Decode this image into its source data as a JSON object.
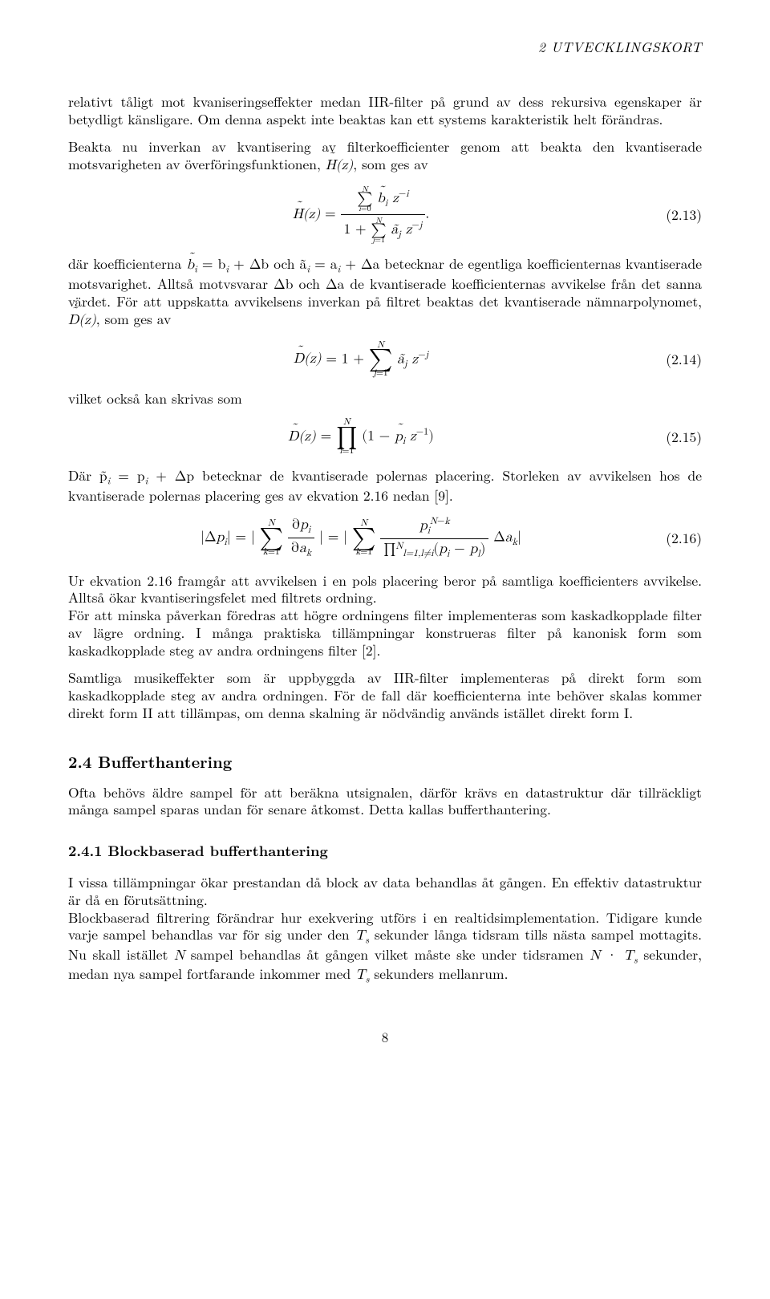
{
  "header": {
    "section": "2   UTVECKLINGSKORT"
  },
  "p1": "relativt tåligt mot kvaniseringseffekter medan IIR-filter på grund av dess rekursiva egenskaper är betydligt känsligare. Om denna aspekt inte beaktas kan ett systems karakteristik helt förändras.",
  "p2_pre": "Beakta nu inverkan av kvantisering av filterkoefficienter genom att beakta den kvantiserade motsvarigheten av överföringsfunktionen, ",
  "p2_math": "H̃(z)",
  "p2_post": ", som ges av",
  "eq213_num": "(2.13)",
  "eq214_num": "(2.14)",
  "eq215_num": "(2.15)",
  "eq216_num": "(2.16)",
  "p3_a": "där koefficienterna ",
  "p3_b": "b̃",
  "p3_c": " = b",
  "p3_d": " + Δb och ã",
  "p3_e": " = a",
  "p3_f": " + Δa betecknar de egentliga koefficienternas kvantiserade motsvarighet. Alltså motvsvarar Δb och Δa de kvantiserade koefficienternas avvikelse från det sanna värdet. För att uppskatta avvikelsens inverkan på filtret beaktas det kvantiserade nämnarpolynomet, ",
  "p3_g": "D̃(z)",
  "p3_h": ", som ges av",
  "p4": "vilket också kan skrivas som",
  "p5_a": "Där p̃",
  "p5_b": " = p",
  "p5_c": " + Δp betecknar de kvantiserade polernas placering. Storleken av avvikelsen hos de kvantiserade polernas placering ges av ekvation 2.16 nedan [9].",
  "p6": "Ur ekvation 2.16 framgår att avvikelsen i en pols placering beror på samtliga koefficienters avvikelse. Alltså ökar kvantiseringsfelet med filtrets ordning.",
  "p7": "För att minska påverkan föredras att högre ordningens filter implementeras som kaskadkopplade filter av lägre ordning. I många praktiska tillämpningar konstrueras filter på kanonisk form som kaskadkopplade steg av andra ordningens filter [2].",
  "p8": "Samtliga musikeffekter som är uppbyggda av IIR-filter implementeras på direkt form som kaskadkopplade steg av andra ordningen. För de fall där koefficienterna inte behöver skalas kommer direkt form II att tillämpas, om denna skalning är nödvändig används istället direkt form I.",
  "sec24": "2.4   Bufferthantering",
  "p9": "Ofta behövs äldre sampel för att beräkna utsignalen, därför krävs en datastruktur där tillräckligt många sampel sparas undan för senare åtkomst. Detta kallas bufferthantering.",
  "sec241": "2.4.1   Blockbaserad bufferthantering",
  "p10": "I vissa tillämpningar ökar prestandan då block av data behandlas åt gången. En effektiv datastruktur är då en förutsättning.",
  "p11_a": "Blockbaserad filtrering förändrar hur exekvering utförs i en realtidsimplementation. Tidigare kunde varje sampel behandlas var för sig under den ",
  "p11_b": " sekunder långa tidsram tills nästa sampel mottagits. Nu skall istället ",
  "p11_c": " sampel behandlas åt gången vilket måste ske under tidsramen ",
  "p11_d": " sekunder, medan nya sampel fortfarande inkommer med ",
  "p11_e": " sekunders mellanrum.",
  "page": "8"
}
